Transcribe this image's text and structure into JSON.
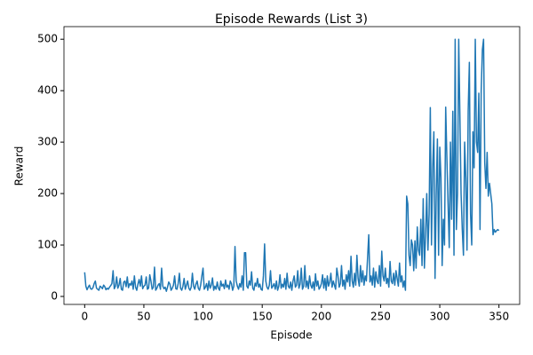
{
  "chart_data": {
    "type": "line",
    "title": "Episode Rewards (List 3)",
    "x_label": "Episode",
    "y_label": "Reward",
    "x": [
      0,
      1,
      2,
      3,
      4,
      5,
      6,
      7,
      8,
      9,
      10,
      11,
      12,
      13,
      14,
      15,
      16,
      17,
      18,
      19,
      20,
      21,
      22,
      23,
      24,
      25,
      26,
      27,
      28,
      29,
      30,
      31,
      32,
      33,
      34,
      35,
      36,
      37,
      38,
      39,
      40,
      41,
      42,
      43,
      44,
      45,
      46,
      47,
      48,
      49,
      50,
      51,
      52,
      53,
      54,
      55,
      56,
      57,
      58,
      59,
      60,
      61,
      62,
      63,
      64,
      65,
      66,
      67,
      68,
      69,
      70,
      71,
      72,
      73,
      74,
      75,
      76,
      77,
      78,
      79,
      80,
      81,
      82,
      83,
      84,
      85,
      86,
      87,
      88,
      89,
      90,
      91,
      92,
      93,
      94,
      95,
      96,
      97,
      98,
      99,
      100,
      101,
      102,
      103,
      104,
      105,
      106,
      107,
      108,
      109,
      110,
      111,
      112,
      113,
      114,
      115,
      116,
      117,
      118,
      119,
      120,
      121,
      122,
      123,
      124,
      125,
      126,
      127,
      128,
      129,
      130,
      131,
      132,
      133,
      134,
      135,
      136,
      137,
      138,
      139,
      140,
      141,
      142,
      143,
      144,
      145,
      146,
      147,
      148,
      149,
      150,
      151,
      152,
      153,
      154,
      155,
      156,
      157,
      158,
      159,
      160,
      161,
      162,
      163,
      164,
      165,
      166,
      167,
      168,
      169,
      170,
      171,
      172,
      173,
      174,
      175,
      176,
      177,
      178,
      179,
      180,
      181,
      182,
      183,
      184,
      185,
      186,
      187,
      188,
      189,
      190,
      191,
      192,
      193,
      194,
      195,
      196,
      197,
      198,
      199,
      200,
      201,
      202,
      203,
      204,
      205,
      206,
      207,
      208,
      209,
      210,
      211,
      212,
      213,
      214,
      215,
      216,
      217,
      218,
      219,
      220,
      221,
      222,
      223,
      224,
      225,
      226,
      227,
      228,
      229,
      230,
      231,
      232,
      233,
      234,
      235,
      236,
      237,
      238,
      239,
      240,
      241,
      242,
      243,
      244,
      245,
      246,
      247,
      248,
      249,
      250,
      251,
      252,
      253,
      254,
      255,
      256,
      257,
      258,
      259,
      260,
      261,
      262,
      263,
      264,
      265,
      266,
      267,
      268,
      269,
      270,
      271,
      272,
      273,
      274,
      275,
      276,
      277,
      278,
      279,
      280,
      281,
      282,
      283,
      284,
      285,
      286,
      287,
      288,
      289,
      290,
      291,
      292,
      293,
      294,
      295,
      296,
      297,
      298,
      299,
      300,
      301,
      302,
      303,
      304,
      305,
      306,
      307,
      308,
      309,
      310,
      311,
      312,
      313,
      314,
      315,
      316,
      317,
      318,
      319,
      320,
      321,
      322,
      323,
      324,
      325,
      326,
      327,
      328,
      329,
      330,
      331,
      332,
      333,
      334,
      335,
      336,
      337,
      338,
      339,
      340,
      341,
      342,
      343,
      344,
      345,
      346,
      347,
      348,
      349,
      350
    ],
    "series": [
      {
        "color": "#1f77b4",
        "values": [
          47,
          20,
          13,
          18,
          22,
          15,
          14,
          17,
          25,
          30,
          16,
          14,
          12,
          20,
          18,
          15,
          22,
          19,
          13,
          16,
          14,
          18,
          21,
          25,
          50,
          15,
          20,
          38,
          16,
          22,
          35,
          14,
          12,
          28,
          30,
          19,
          38,
          17,
          25,
          22,
          30,
          14,
          40,
          18,
          12,
          24,
          33,
          20,
          40,
          15,
          20,
          22,
          38,
          14,
          16,
          42,
          30,
          14,
          18,
          57,
          12,
          16,
          22,
          25,
          14,
          55,
          20,
          15,
          18,
          10,
          18,
          28,
          24,
          12,
          16,
          22,
          40,
          15,
          14,
          25,
          45,
          16,
          12,
          20,
          35,
          14,
          22,
          30,
          16,
          12,
          18,
          45,
          20,
          14,
          24,
          30,
          16,
          12,
          22,
          40,
          55,
          14,
          18,
          25,
          12,
          30,
          16,
          22,
          36,
          12,
          20,
          14,
          28,
          16,
          12,
          30,
          20,
          24,
          15,
          32,
          18,
          22,
          14,
          30,
          25,
          12,
          20,
          97,
          30,
          20,
          14,
          25,
          18,
          40,
          12,
          85,
          85,
          20,
          16,
          30,
          22,
          48,
          16,
          12,
          26,
          20,
          35,
          18,
          24,
          14,
          12,
          40,
          102,
          30,
          18,
          14,
          22,
          50,
          16,
          20,
          25,
          14,
          30,
          12,
          20,
          42,
          16,
          24,
          18,
          35,
          14,
          45,
          20,
          16,
          28,
          12,
          30,
          40,
          18,
          22,
          50,
          16,
          24,
          55,
          14,
          20,
          60,
          18,
          30,
          15,
          40,
          22,
          16,
          28,
          12,
          44,
          20,
          30,
          14,
          18,
          25,
          42,
          16,
          35,
          12,
          40,
          20,
          28,
          45,
          18,
          30,
          22,
          14,
          55,
          40,
          18,
          25,
          60,
          20,
          32,
          14,
          42,
          28,
          50,
          20,
          78,
          30,
          18,
          45,
          22,
          80,
          35,
          20,
          60,
          28,
          50,
          22,
          40,
          30,
          75,
          120,
          28,
          40,
          22,
          55,
          18,
          48,
          30,
          25,
          60,
          20,
          88,
          40,
          30,
          55,
          25,
          35,
          18,
          68,
          30,
          25,
          45,
          22,
          50,
          35,
          20,
          65,
          28,
          40,
          18,
          30,
          12,
          195,
          180,
          80,
          60,
          110,
          100,
          50,
          108,
          55,
          135,
          90,
          80,
          150,
          60,
          190,
          55,
          120,
          200,
          90,
          160,
          367,
          100,
          250,
          320,
          35,
          200,
          306,
          80,
          290,
          230,
          60,
          150,
          100,
          368,
          270,
          180,
          95,
          300,
          150,
          360,
          80,
          500,
          130,
          200,
          500,
          350,
          200,
          130,
          80,
          300,
          230,
          90,
          360,
          455,
          160,
          100,
          320,
          250,
          500,
          300,
          280,
          395,
          130,
          400,
          480,
          500,
          260,
          210,
          280,
          195,
          220,
          200,
          180,
          120,
          130,
          125,
          128,
          130,
          128
        ]
      }
    ],
    "xlim": [
      -17.5,
      367.5
    ],
    "xticks": [
      0,
      50,
      100,
      150,
      200,
      250,
      300,
      350
    ],
    "ylim": [
      -15.5,
      524.5
    ],
    "yticks": [
      0,
      100,
      200,
      300,
      400,
      500
    ]
  }
}
